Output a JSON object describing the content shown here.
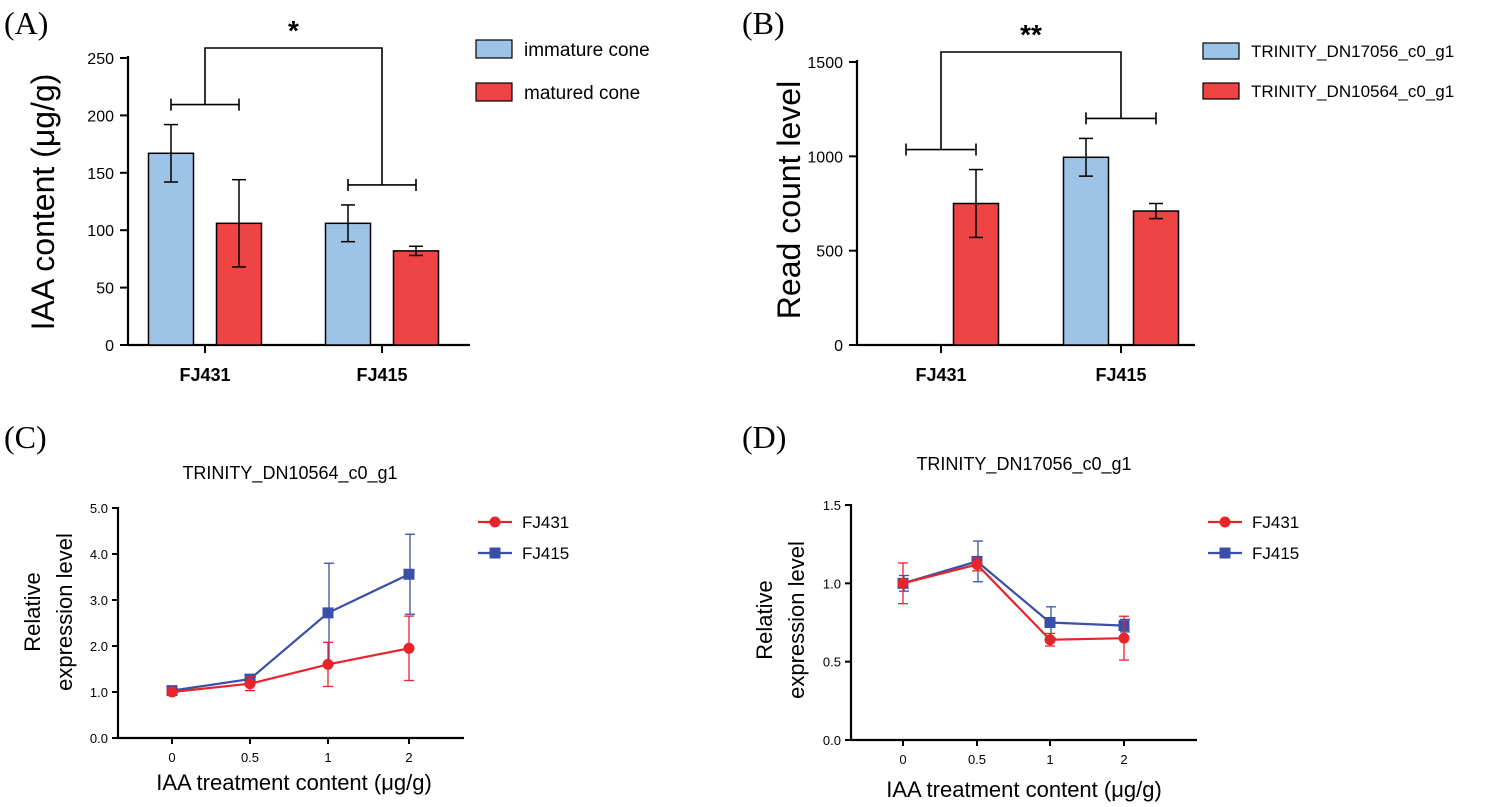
{
  "panels": {
    "A": "(A)",
    "B": "(B)",
    "C": "(C)",
    "D": "(D)"
  },
  "colors": {
    "blue_bar": "#9dc3e6",
    "red_bar": "#ee4444",
    "line_red": "#e8242b",
    "line_blue": "#3a4fa8"
  },
  "chart_data": [
    {
      "id": "A",
      "type": "bar",
      "title": "",
      "xlabel": "",
      "ylabel": "IAA content (μg/g)",
      "ylim": [
        0,
        250
      ],
      "yticks": [
        "0",
        "50",
        "100",
        "150",
        "200",
        "250"
      ],
      "categories": [
        "FJ431",
        "FJ415"
      ],
      "series": [
        {
          "name": "immature cone",
          "values": [
            167,
            106
          ],
          "errors": [
            25,
            16
          ]
        },
        {
          "name": "matured cone",
          "values": [
            106,
            82
          ],
          "errors": [
            38,
            4
          ]
        }
      ],
      "significance": "*",
      "legend": "top-right"
    },
    {
      "id": "B",
      "type": "bar",
      "title": "",
      "xlabel": "",
      "ylabel": "Read count level",
      "ylim": [
        0,
        1500
      ],
      "yticks": [
        "0",
        "500",
        "1000",
        "1500"
      ],
      "categories": [
        "FJ431",
        "FJ415"
      ],
      "series": [
        {
          "name": "TRINITY_DN17056_c0_g1",
          "values": [
            0,
            995
          ],
          "errors": [
            0,
            100
          ]
        },
        {
          "name": "TRINITY_DN10564_c0_g1",
          "values": [
            750,
            710
          ],
          "errors": [
            180,
            40
          ]
        }
      ],
      "significance": "**",
      "legend": "top-right"
    },
    {
      "id": "C",
      "type": "line",
      "title": "TRINITY_DN10564_c0_g1",
      "xlabel": "IAA treatment content (μg/g)",
      "ylabel_lines": [
        "Relative",
        "expression level"
      ],
      "ylim": [
        0,
        5
      ],
      "yticks": [
        "0.0",
        "1.0",
        "2.0",
        "3.0",
        "4.0",
        "5.0"
      ],
      "categories": [
        "0",
        "0.5",
        "1",
        "2"
      ],
      "series": [
        {
          "name": "FJ431",
          "marker": "circle",
          "values": [
            1.0,
            1.18,
            1.6,
            1.95
          ],
          "errors": [
            0.05,
            0.15,
            0.48,
            0.7
          ]
        },
        {
          "name": "FJ415",
          "marker": "square",
          "values": [
            1.03,
            1.28,
            2.72,
            3.56
          ],
          "errors": [
            0.04,
            0.05,
            1.08,
            0.87
          ]
        }
      ],
      "legend": "top-right"
    },
    {
      "id": "D",
      "type": "line",
      "title": "TRINITY_DN17056_c0_g1",
      "xlabel": "IAA treatment content (μg/g)",
      "ylabel_lines": [
        "Relative",
        "expression level"
      ],
      "ylim": [
        0,
        1.5
      ],
      "yticks": [
        "0.0",
        "0.5",
        "1.0",
        "1.5"
      ],
      "categories": [
        "0",
        "0.5",
        "1",
        "2"
      ],
      "series": [
        {
          "name": "FJ431",
          "marker": "circle",
          "values": [
            1.0,
            1.12,
            0.64,
            0.65
          ],
          "errors": [
            0.13,
            0.04,
            0.04,
            0.14
          ]
        },
        {
          "name": "FJ415",
          "marker": "square",
          "values": [
            1.0,
            1.14,
            0.75,
            0.73
          ],
          "errors": [
            0.05,
            0.13,
            0.1,
            0.04
          ]
        }
      ],
      "legend": "top-right"
    }
  ]
}
